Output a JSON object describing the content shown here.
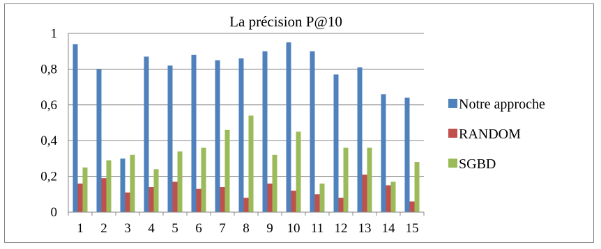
{
  "chart_data": {
    "type": "bar",
    "title": "La précision P@10",
    "xlabel": "",
    "ylabel": "",
    "categories": [
      "1",
      "2",
      "3",
      "4",
      "5",
      "6",
      "7",
      "8",
      "9",
      "10",
      "11",
      "12",
      "13",
      "14",
      "15"
    ],
    "y_tick_labels": [
      "0",
      "0,2",
      "0,4",
      "0,6",
      "0,8",
      "1"
    ],
    "ylim": [
      0,
      1
    ],
    "grid": true,
    "legend_position": "right",
    "series": [
      {
        "name": "Notre approche",
        "color": "#4f81bd",
        "values": [
          0.94,
          0.8,
          0.3,
          0.87,
          0.82,
          0.88,
          0.85,
          0.86,
          0.9,
          0.95,
          0.9,
          0.77,
          0.81,
          0.66,
          0.64
        ]
      },
      {
        "name": "RANDOM",
        "color": "#c0504d",
        "values": [
          0.16,
          0.19,
          0.11,
          0.14,
          0.17,
          0.13,
          0.14,
          0.08,
          0.16,
          0.12,
          0.1,
          0.08,
          0.21,
          0.15,
          0.06
        ]
      },
      {
        "name": "SGBD",
        "color": "#9bbb59",
        "values": [
          0.25,
          0.29,
          0.32,
          0.24,
          0.34,
          0.36,
          0.46,
          0.54,
          0.32,
          0.45,
          0.16,
          0.36,
          0.36,
          0.17,
          0.28
        ]
      }
    ]
  }
}
